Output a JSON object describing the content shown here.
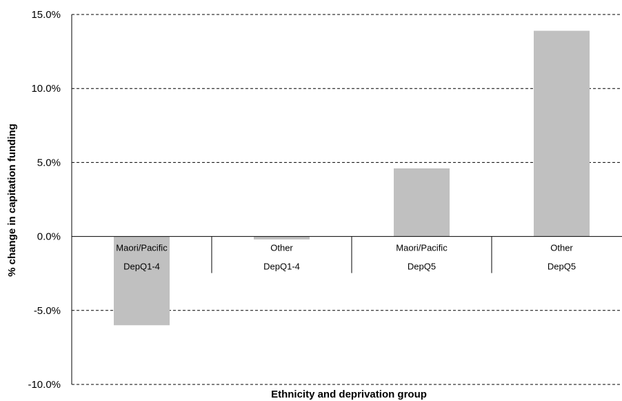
{
  "chart_data": {
    "type": "bar",
    "categories": [
      {
        "line1": "Maori/Pacific",
        "line2": "DepQ1-4"
      },
      {
        "line1": "Other",
        "line2": "DepQ1-4"
      },
      {
        "line1": "Maori/Pacific",
        "line2": "DepQ5"
      },
      {
        "line1": "Other",
        "line2": "DepQ5"
      }
    ],
    "values": [
      -6.0,
      -0.2,
      4.6,
      13.9
    ],
    "xlabel": "Ethnicity and deprivation group",
    "ylabel": "% change in capitation funding",
    "ylim": [
      -10,
      15
    ],
    "yticks": [
      -10,
      -5,
      0,
      5,
      10,
      15
    ],
    "ytick_labels": [
      "-10.0%",
      "-5.0%",
      "0.0%",
      "5.0%",
      "10.0%",
      "15.0%"
    ],
    "gridlines": "dashed-horizontal",
    "bar_color": "#c0c0c0",
    "grid_color": "#000000",
    "legend": "none"
  }
}
